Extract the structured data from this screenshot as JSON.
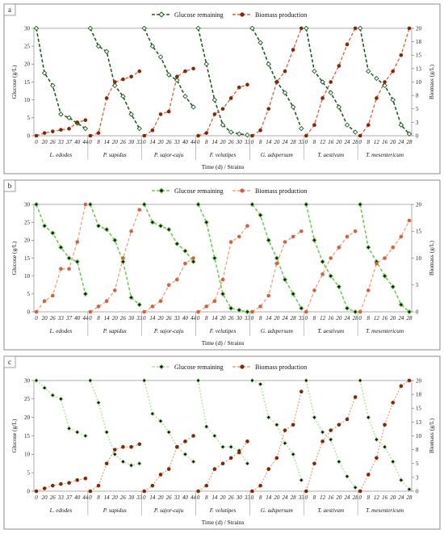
{
  "chart_data": [
    {
      "type": "line",
      "panel_label": "a",
      "xlabel": "Time (d) / Strains",
      "ylabel_left": "Glucose (g/L)",
      "ylabel_right": "Biomass (g/L)",
      "ylim_left": [
        0,
        30
      ],
      "ylim_right": [
        0,
        20
      ],
      "yticks_left": [
        "0",
        "5",
        "10",
        "15",
        "20",
        "25",
        "30"
      ],
      "yticks_right": [
        "0",
        "3",
        "5",
        "8",
        "10",
        "13",
        "15",
        "18",
        "20"
      ],
      "legend": {
        "position": "top-center",
        "entries": [
          "Glucose remaining",
          "Biomass production"
        ]
      },
      "style": {
        "glucose": "dark-green-dashed-open-diamond",
        "biomass": "orange-dashed-dot"
      },
      "colors": {
        "glucose_line": "#1f5e1f",
        "glucose_marker": "#ffffff",
        "biomass_line": "#d9603b",
        "biomass_marker": "#8b2500"
      },
      "groups": [
        {
          "strain": "L. edodes",
          "x_labels": [
            "0",
            "20",
            "26",
            "33",
            "37",
            "40",
            "44"
          ],
          "x": [
            0,
            20,
            26,
            33,
            37,
            40,
            44
          ],
          "glucose": [
            30,
            17.5,
            14,
            6,
            5,
            3.5,
            2
          ],
          "biomass": [
            0,
            0.5,
            0.8,
            1.1,
            1.3,
            2.5,
            2.9
          ]
        },
        {
          "strain": "P. sapidus",
          "x_labels": [
            "0",
            "8",
            "14",
            "20",
            "26",
            "30",
            "33"
          ],
          "x": [
            0,
            8,
            14,
            20,
            26,
            30,
            33
          ],
          "glucose": [
            30,
            25,
            23.5,
            14,
            11,
            6,
            2
          ],
          "biomass": [
            0,
            0.5,
            7,
            10,
            10.5,
            11,
            12
          ]
        },
        {
          "strain": "P. sajor-caju",
          "x_labels": [
            "0",
            "14",
            "20",
            "26",
            "33",
            "40",
            "44"
          ],
          "x": [
            0,
            14,
            20,
            26,
            33,
            40,
            44
          ],
          "glucose": [
            30,
            25,
            22,
            17,
            15.5,
            11,
            8
          ],
          "biomass": [
            0,
            1,
            4,
            4.5,
            11,
            12,
            12.5
          ]
        },
        {
          "strain": "F. velutipes",
          "x_labels": [
            "0",
            "8",
            "14",
            "20",
            "26",
            "30",
            "33"
          ],
          "x": [
            0,
            8,
            14,
            20,
            26,
            30,
            33
          ],
          "glucose": [
            30,
            20,
            10,
            3,
            1,
            0.5,
            0.2
          ],
          "biomass": [
            0,
            0.5,
            4,
            5,
            7,
            9,
            9.5
          ]
        },
        {
          "strain": "G. adspersum",
          "x_labels": [
            "0",
            "8",
            "14",
            "20",
            "24",
            "28",
            "33"
          ],
          "x": [
            0,
            8,
            14,
            20,
            24,
            28,
            33
          ],
          "glucose": [
            30,
            26,
            20,
            15,
            12,
            8,
            2
          ],
          "biomass": [
            0,
            1,
            5,
            10,
            12,
            16,
            25
          ]
        },
        {
          "strain": "T. aestivum",
          "x_labels": [
            "0",
            "8",
            "12",
            "16",
            "20",
            "24",
            "28"
          ],
          "x": [
            0,
            8,
            12,
            16,
            20,
            24,
            28
          ],
          "glucose": [
            30,
            18,
            15,
            12,
            8,
            3,
            1
          ],
          "biomass": [
            0,
            2,
            7,
            10,
            13,
            17,
            20
          ]
        },
        {
          "strain": "T. mesentericum",
          "x_labels": [
            "0",
            "8",
            "12",
            "16",
            "20",
            "24",
            "28"
          ],
          "x": [
            0,
            8,
            12,
            16,
            20,
            24,
            28
          ],
          "glucose": [
            30,
            18,
            16,
            14,
            10,
            3,
            0.5
          ],
          "biomass": [
            0,
            2,
            7,
            10,
            12,
            15,
            20
          ]
        }
      ]
    },
    {
      "type": "line",
      "panel_label": "b",
      "xlabel": "Time (d) / Strains",
      "ylabel_left": "Glucose (g/L)",
      "ylabel_right": "Biomass (g/L)",
      "ylim_left": [
        0,
        30
      ],
      "ylim_right": [
        0,
        20
      ],
      "yticks_left": [
        "0",
        "5",
        "10",
        "15",
        "20",
        "25",
        "30"
      ],
      "yticks_right": [
        "0",
        "5",
        "10",
        "15",
        "20"
      ],
      "legend": {
        "position": "top-center",
        "entries": [
          "Glucose remaining",
          "Biomass production"
        ]
      },
      "style": {
        "glucose": "light-green-dashed-filled-diamond",
        "biomass": "orange-dashed-dot"
      },
      "colors": {
        "glucose_line": "#6ccf4e",
        "glucose_marker": "#111111",
        "biomass_line": "#f0a07a",
        "biomass_marker": "#d9603b"
      },
      "groups": [
        {
          "strain": "L. edodes",
          "x_labels": [
            "0",
            "20",
            "26",
            "33",
            "37",
            "40",
            "44"
          ],
          "x": [
            0,
            20,
            26,
            33,
            37,
            40,
            44
          ],
          "glucose": [
            30,
            24,
            22,
            18,
            15,
            14,
            5
          ],
          "biomass": [
            0,
            2,
            3,
            8,
            8,
            13,
            20
          ]
        },
        {
          "strain": "P. sapidus",
          "x_labels": [
            "0",
            "8",
            "14",
            "20",
            "26",
            "30",
            "33"
          ],
          "x": [
            0,
            8,
            14,
            20,
            26,
            30,
            33
          ],
          "glucose": [
            30,
            24,
            23,
            20,
            14,
            4,
            2
          ],
          "biomass": [
            0,
            1,
            2,
            4,
            10,
            15,
            19
          ]
        },
        {
          "strain": "P. sajor-caju",
          "x_labels": [
            "0",
            "14",
            "20",
            "26",
            "33",
            "40",
            "44"
          ],
          "x": [
            0,
            14,
            20,
            26,
            33,
            40,
            44
          ],
          "glucose": [
            30,
            25,
            24,
            23,
            19,
            17,
            14
          ],
          "biomass": [
            0,
            1,
            2,
            5,
            6,
            9,
            10
          ]
        },
        {
          "strain": "F. velutipes",
          "x_labels": [
            "0",
            "8",
            "14",
            "20",
            "26",
            "30",
            "33"
          ],
          "x": [
            0,
            8,
            14,
            20,
            26,
            30,
            33
          ],
          "glucose": [
            30,
            25,
            15,
            5,
            1,
            0.5,
            0
          ],
          "biomass": [
            0,
            1,
            2,
            6,
            13,
            14,
            16
          ]
        },
        {
          "strain": "G. adspersum",
          "x_labels": [
            "0",
            "8",
            "14",
            "20",
            "24",
            "28",
            "33"
          ],
          "x": [
            0,
            8,
            14,
            20,
            24,
            28,
            33
          ],
          "glucose": [
            30,
            27,
            20,
            15,
            9,
            5,
            1
          ],
          "biomass": [
            0,
            1,
            3,
            9,
            13,
            14,
            15
          ]
        },
        {
          "strain": "T. aestivum",
          "x_labels": [
            "0",
            "8",
            "12",
            "16",
            "20",
            "24",
            "28"
          ],
          "x": [
            0,
            8,
            12,
            16,
            20,
            24,
            28
          ],
          "glucose": [
            30,
            20,
            14,
            10,
            7,
            1,
            0
          ],
          "biomass": [
            0,
            4,
            7,
            10,
            12,
            14,
            15
          ]
        },
        {
          "strain": "T. mesentericum",
          "x_labels": [
            "0",
            "8",
            "12",
            "16",
            "20",
            "24",
            "28"
          ],
          "x": [
            0,
            8,
            12,
            16,
            20,
            24,
            28
          ],
          "glucose": [
            30,
            18,
            14,
            10,
            7,
            2,
            0
          ],
          "biomass": [
            0,
            4,
            9,
            10,
            12,
            14,
            17
          ]
        }
      ]
    },
    {
      "type": "line",
      "panel_label": "c",
      "xlabel": "Time (d) / Strains",
      "ylabel_left": "Glucose (g/L)",
      "ylabel_right": "Biomass (g/L)",
      "ylim_left": [
        0,
        30
      ],
      "ylim_right": [
        0,
        20
      ],
      "yticks_left": [
        "0",
        "5",
        "10",
        "15",
        "20",
        "25",
        "30"
      ],
      "yticks_right": [
        "0",
        "3",
        "5",
        "8",
        "10",
        "13",
        "15",
        "18",
        "20"
      ],
      "legend": {
        "position": "top-center",
        "entries": [
          "Glucose remaining",
          "Biomass production"
        ]
      },
      "style": {
        "glucose": "pale-green-dotted-filled-diamond",
        "biomass": "orange-dotted-dot"
      },
      "colors": {
        "glucose_line": "#b5e6a3",
        "glucose_marker": "#111111",
        "biomass_line": "#f0a07a",
        "biomass_marker": "#8b2500"
      },
      "groups": [
        {
          "strain": "L. edodes",
          "x_labels": [
            "0",
            "20",
            "26",
            "33",
            "37",
            "40",
            "44"
          ],
          "x": [
            0,
            20,
            26,
            33,
            37,
            40,
            44
          ],
          "glucose": [
            30,
            28,
            26,
            25,
            17,
            16,
            15
          ],
          "biomass": [
            0,
            0.5,
            1,
            1.3,
            1.5,
            2,
            2.3
          ]
        },
        {
          "strain": "P. sapidus",
          "x_labels": [
            "0",
            "8",
            "14",
            "20",
            "26",
            "30",
            "33"
          ],
          "x": [
            0,
            8,
            14,
            20,
            26,
            30,
            33
          ],
          "glucose": [
            30,
            24,
            16,
            10,
            8,
            7,
            7.5
          ],
          "biomass": [
            0,
            1,
            5,
            7.5,
            8,
            8,
            8.5
          ]
        },
        {
          "strain": "P. sajor-caju",
          "x_labels": [
            "0",
            "14",
            "20",
            "26",
            "33",
            "40",
            "44"
          ],
          "x": [
            0,
            14,
            20,
            26,
            33,
            40,
            44
          ],
          "glucose": [
            30,
            21,
            19,
            16,
            12,
            10,
            8
          ],
          "biomass": [
            0,
            1,
            3,
            4,
            8,
            9,
            10
          ]
        },
        {
          "strain": "F. velutipes",
          "x_labels": [
            "0",
            "8",
            "14",
            "20",
            "26",
            "30",
            "33"
          ],
          "x": [
            0,
            8,
            14,
            20,
            26,
            30,
            33
          ],
          "glucose": [
            30,
            17.5,
            15,
            12,
            12,
            11,
            7.5
          ],
          "biomass": [
            0,
            1,
            4,
            5,
            6,
            7,
            9
          ]
        },
        {
          "strain": "G. adspersum",
          "x_labels": [
            "0",
            "8",
            "14",
            "20",
            "24",
            "28",
            "33"
          ],
          "x": [
            0,
            8,
            14,
            20,
            24,
            28,
            33
          ],
          "glucose": [
            30,
            29,
            20,
            18,
            13,
            10,
            3
          ],
          "biomass": [
            0,
            1,
            4,
            6,
            11,
            12,
            18
          ]
        },
        {
          "strain": "T. aestivum",
          "x_labels": [
            "0",
            "8",
            "12",
            "16",
            "20",
            "24",
            "28"
          ],
          "x": [
            0,
            8,
            12,
            16,
            20,
            24,
            28
          ],
          "glucose": [
            30,
            20,
            16,
            14,
            8,
            4,
            1
          ],
          "biomass": [
            0,
            5,
            9,
            11,
            12,
            13,
            17
          ]
        },
        {
          "strain": "T. mesentericum",
          "x_labels": [
            "0",
            "8",
            "12",
            "16",
            "20",
            "24",
            "28"
          ],
          "x": [
            0,
            8,
            12,
            16,
            20,
            24,
            28
          ],
          "glucose": [
            30,
            20,
            14,
            12,
            8,
            3,
            0.5
          ],
          "biomass": [
            0,
            3,
            6,
            12,
            16,
            19,
            22
          ]
        }
      ]
    }
  ]
}
